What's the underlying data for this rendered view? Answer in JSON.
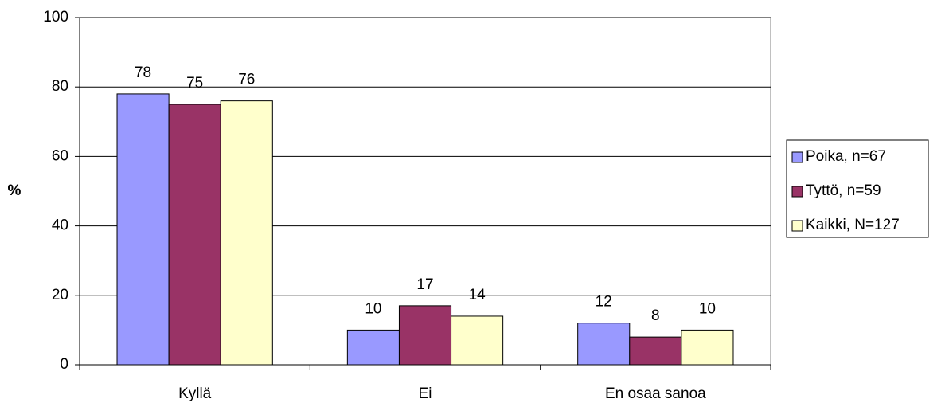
{
  "chart_data": {
    "type": "bar",
    "y_label": "%",
    "categories": [
      "Kyllä",
      "Ei",
      "En osaa sanoa"
    ],
    "series": [
      {
        "name": "Poika, n=67",
        "color": "#9999ff",
        "values": [
          78,
          10,
          12
        ]
      },
      {
        "name": "Tyttö, n=59",
        "color": "#993366",
        "values": [
          75,
          17,
          8
        ]
      },
      {
        "name": "Kaikki, N=127",
        "color": "#ffffcc",
        "values": [
          76,
          14,
          10
        ]
      }
    ],
    "ylim": [
      0,
      100
    ],
    "yticks": [
      0,
      20,
      40,
      60,
      80,
      100
    ],
    "grid": true,
    "legend": "right"
  }
}
